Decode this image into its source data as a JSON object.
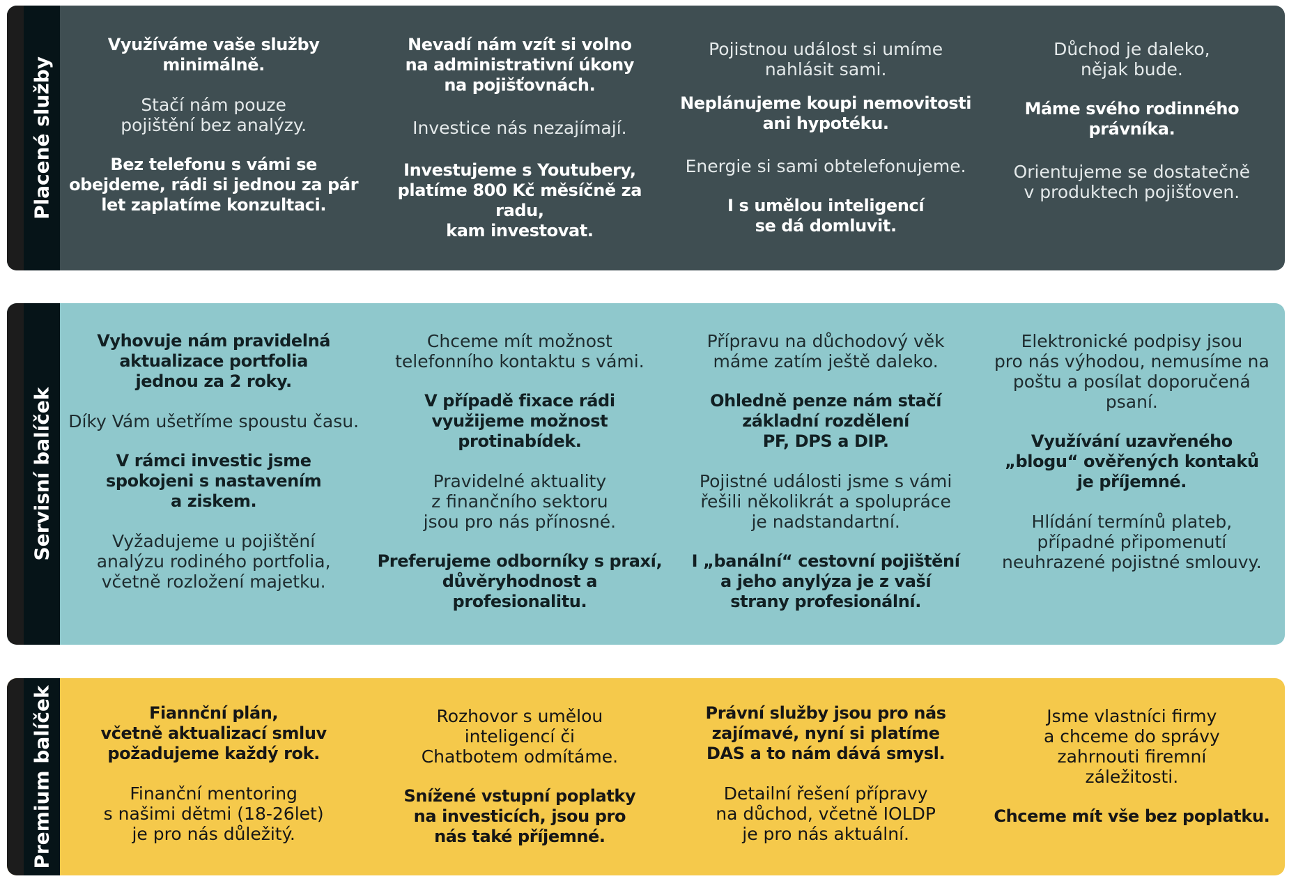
{
  "panels": {
    "paid": {
      "label": "Placené služby",
      "columns": [
        [
          "Využíváme vaše služby\nminimálně.",
          "Stačí nám pouze\npojištění bez analýzy.",
          "Bez telefonu s vámi se\nobejdeme, rádi si jednou za pár\nlet zaplatíme konzultaci."
        ],
        [
          "Nevadí nám vzít si volno\nna administrativní úkony\nna pojišťovnách.",
          "Investice nás nezajímají.",
          "Investujeme s Youtubery,\nplatíme 800 Kč měsíčně za radu,\nkam investovat."
        ],
        [
          "Pojistnou událost si umíme\nnahlásit sami.",
          "Neplánujeme koupi nemovitosti\nani hypotéku.",
          "Energie si sami obtelefonujeme.",
          "I s umělou inteligencí\nse dá domluvit."
        ],
        [
          "Důchod je daleko,\nnějak bude.",
          "Máme svého rodinného\nprávníka.",
          "Orientujeme se dostatečně\nv produktech pojišťoven."
        ]
      ]
    },
    "service": {
      "label": "Servisní balíček",
      "columns": [
        [
          "Vyhovuje nám pravidelná\naktualizace portfolia\njednou za 2 roky.",
          "Díky Vám ušetříme spoustu času.",
          "V rámci investic jsme\nspokojeni s nastavením\na ziskem.",
          "Vyžadujeme u pojištění\nanalýzu rodiného portfolia,\nvčetně rozložení majetku."
        ],
        [
          "Chceme mít možnost\ntelefonního kontaktu s vámi.",
          "V případě fixace rádi\nvyužijeme možnost\nprotinabídek.",
          "Pravidelné aktuality\nz finančního sektoru\njsou pro nás přínosné.",
          "Preferujeme odborníky s praxí,\ndůvěryhodnost a profesionalitu."
        ],
        [
          "Přípravu na důchodový věk\nmáme zatím ještě daleko.",
          "Ohledně penze nám stačí\nzákladní rozdělení\nPF, DPS a DIP.",
          "Pojistné události jsme s vámi\nřešili několikrát a spolupráce\nje nadstandartní.",
          "I „banální“ cestovní pojištění\na jeho anylýza je z vaší\nstrany profesionální."
        ],
        [
          "Elektronické podpisy jsou\npro nás výhodou, nemusíme na\npoštu a posílat doporučená psaní.",
          "Využívání uzavřeného\n„blogu“ ověřených kontaků\nje příjemné.",
          "Hlídání termínů plateb,\npřípadné připomenutí\nneuhrazené pojistné smlouvy."
        ]
      ]
    },
    "premium": {
      "label": "Premium balíček",
      "columns": [
        [
          "Fiannční plán,\nvčetně aktualizací smluv\npožadujeme každý rok.",
          "Finanční mentoring\ns našimi dětmi (18-26let)\nje pro nás důležitý."
        ],
        [
          "Rozhovor s umělou\ninteligencí či\nChatbotem odmítáme.",
          "Snížené vstupní poplatky\nna investicích, jsou pro\nnás také příjemné."
        ],
        [
          "Právní služby jsou pro nás\nzajímavé, nyní si platíme\nDAS a to nám dává smysl.",
          "Detailní řešení přípravy\nna důchod, včetně IOLDP\nje pro nás aktuální."
        ],
        [
          "Jsme vlastníci firmy\na chceme do správy\nzahrnouti firemní\nzáležitosti.",
          "Chceme mít vše bez poplatku."
        ]
      ]
    }
  }
}
